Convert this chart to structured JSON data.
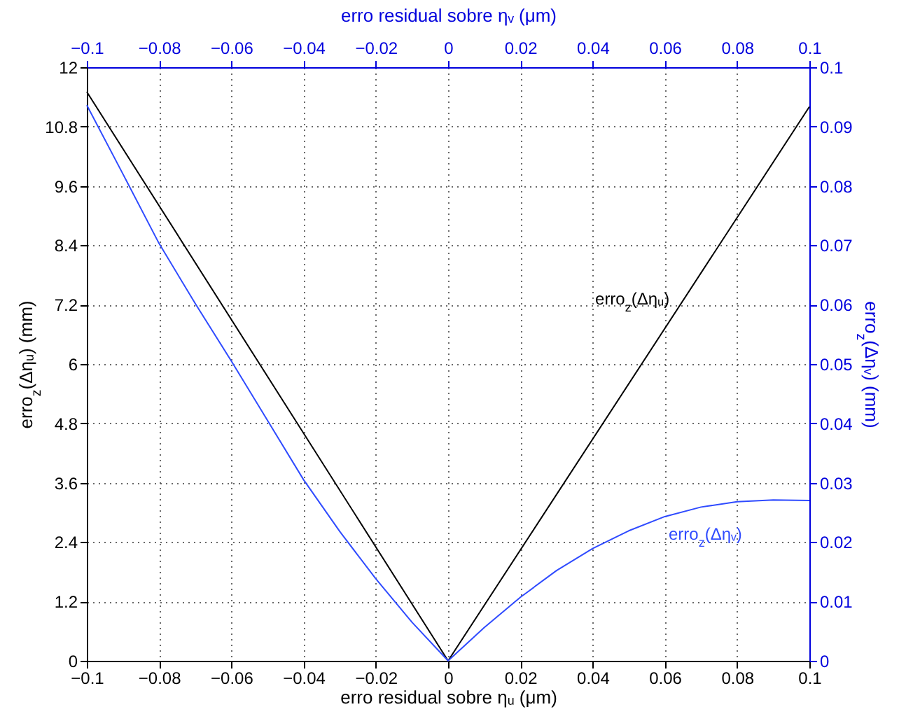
{
  "chart_data": {
    "type": "line",
    "xlabel": "erro residual sobre ηᵤ (μm)",
    "x2label": "erro residual sobre ηᵥ (μm)",
    "ylabel": "erro$_{z}$(Δηᵤ) (mm)",
    "y2label": "erro$_{z}$(Δηᵥ) (mm)",
    "xlim": [
      -0.1,
      0.1
    ],
    "xticks": [
      -0.1,
      -0.08,
      -0.06,
      -0.04,
      -0.02,
      0,
      0.02,
      0.04,
      0.06,
      0.08,
      0.1
    ],
    "x2lim": [
      -0.1,
      0.1
    ],
    "x2ticks": [
      -0.1,
      -0.08,
      -0.06,
      -0.04,
      -0.02,
      0,
      0.02,
      0.04,
      0.06,
      0.08,
      0.1
    ],
    "ylim": [
      0,
      12
    ],
    "yticks": [
      0,
      1.2,
      2.4,
      3.6,
      4.8,
      6,
      7.2,
      8.4,
      9.6,
      10.8,
      12
    ],
    "y2lim": [
      0,
      0.1
    ],
    "y2ticks": [
      0,
      0.01,
      0.02,
      0.03,
      0.04,
      0.05,
      0.06,
      0.07,
      0.08,
      0.09,
      0.1
    ],
    "grid": true,
    "annotations": [
      "erro$_{z}$(Δηᵤ)",
      "erro$_{z}$(Δηᵥ)"
    ],
    "series": [
      {
        "color": "#000000",
        "x": [
          -0.1,
          0,
          0.1
        ],
        "values": [
          11.5,
          0,
          11.2
        ]
      },
      {
        "color": "#2f4bff",
        "axis": "y2",
        "x": [
          -0.1,
          -0.09,
          -0.08,
          -0.07,
          -0.06,
          -0.05,
          -0.04,
          -0.03,
          -0.02,
          -0.01,
          0,
          0.01,
          0.02,
          0.03,
          0.04,
          0.05,
          0.06,
          0.07,
          0.08,
          0.09,
          0.1
        ],
        "values": [
          0.0936,
          0.082,
          0.0703,
          0.0602,
          0.0505,
          0.0405,
          0.0305,
          0.0218,
          0.0138,
          0.0065,
          0,
          0.0056,
          0.0107,
          0.0152,
          0.0189,
          0.0219,
          0.0243,
          0.0259,
          0.0268,
          0.0271,
          0.027
        ]
      }
    ]
  }
}
